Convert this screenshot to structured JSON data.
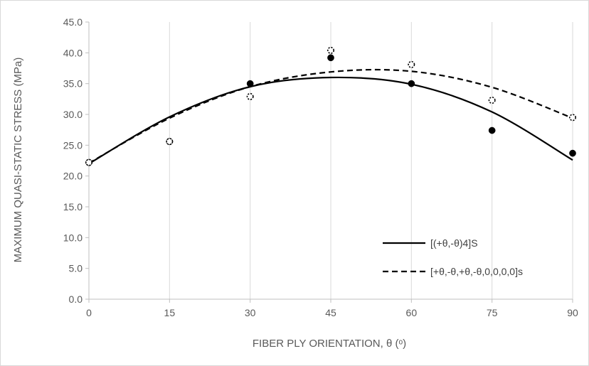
{
  "chart_data": {
    "type": "scatter",
    "title": "",
    "xlabel": "FIBER PLY ORIENTATION, θ (ᵒ)",
    "ylabel": "MAXIMUM QUASI-STATIC STRESS (MPa)",
    "xlim": [
      0,
      90
    ],
    "ylim": [
      0,
      45
    ],
    "x_ticks": [
      0,
      15,
      30,
      45,
      60,
      75,
      90
    ],
    "x_tick_labels": [
      "0",
      "15",
      "30",
      "45",
      "60",
      "75",
      "90"
    ],
    "y_ticks": [
      0,
      5,
      10,
      15,
      20,
      25,
      30,
      35,
      40,
      45
    ],
    "y_tick_labels": [
      "0.0",
      "5.0",
      "10.0",
      "15.0",
      "20.0",
      "25.0",
      "30.0",
      "35.0",
      "40.0",
      "45.0"
    ],
    "grid": "vertical",
    "legend_position": "bottom-right",
    "series": [
      {
        "name": "[(+θ,-θ)4]S",
        "marker": "filled-circle",
        "line": "solid",
        "color": "#000000",
        "x": [
          0,
          15,
          30,
          45,
          60,
          75,
          90
        ],
        "y": [
          22.2,
          25.6,
          35.0,
          39.2,
          35.0,
          27.4,
          23.7
        ],
        "trendline": {
          "type": "polynomial-2",
          "x": [
            0,
            15,
            30,
            45,
            60,
            75,
            90
          ],
          "y": [
            22.0,
            29.6,
            34.5,
            36.0,
            34.9,
            30.4,
            22.6
          ]
        }
      },
      {
        "name": "[+θ,-θ,+θ,-θ,0,0,0,0]s",
        "marker": "open-circle",
        "line": "dashed",
        "color": "#000000",
        "x": [
          0,
          15,
          30,
          45,
          60,
          75,
          90
        ],
        "y": [
          22.2,
          25.6,
          32.9,
          40.4,
          38.1,
          32.3,
          29.5
        ],
        "trendline": {
          "type": "polynomial-2",
          "x": [
            0,
            15,
            30,
            45,
            60,
            75,
            90
          ],
          "y": [
            22.1,
            29.4,
            34.5,
            36.9,
            37.0,
            34.4,
            29.4
          ]
        }
      }
    ]
  }
}
